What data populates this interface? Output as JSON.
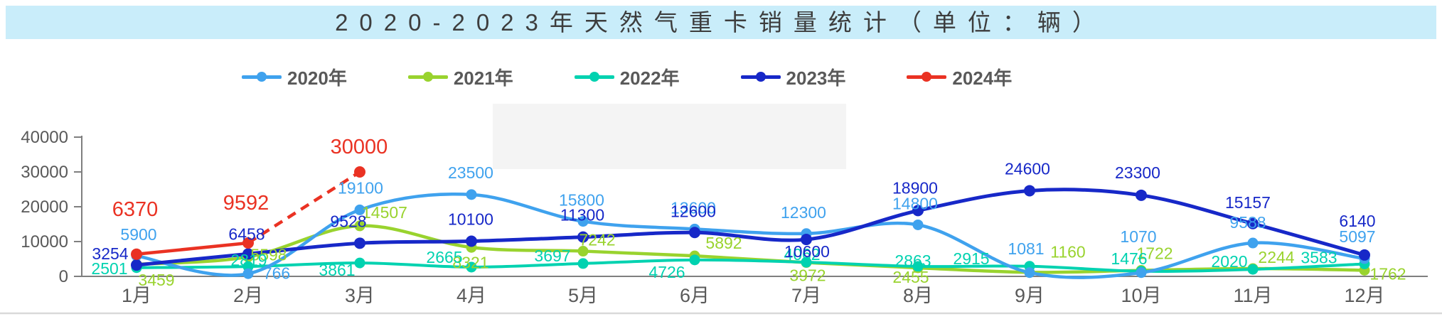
{
  "title": "2020-2023年天然气重卡销量统计（单位：辆）",
  "chart_data": {
    "type": "line",
    "title": "2020-2023年天然气重卡销量统计（单位：辆）",
    "categories": [
      "1月",
      "2月",
      "3月",
      "4月",
      "5月",
      "6月",
      "7月",
      "8月",
      "9月",
      "10月",
      "11月",
      "12月"
    ],
    "series": [
      {
        "name": "2020年",
        "color": "#3fa2ee",
        "values": [
          5900,
          766,
          19100,
          23500,
          15800,
          13600,
          12300,
          14800,
          1081,
          1070,
          9588,
          5097
        ]
      },
      {
        "name": "2021年",
        "color": "#99d32e",
        "values": [
          3459,
          5598,
          14507,
          8321,
          7242,
          5892,
          3972,
          2455,
          1160,
          1722,
          2244,
          1762
        ]
      },
      {
        "name": "2022年",
        "color": "#00d2b0",
        "values": [
          2501,
          2819,
          3861,
          2665,
          3697,
          4726,
          4062,
          2863,
          2915,
          1476,
          2020,
          3583
        ]
      },
      {
        "name": "2023年",
        "color": "#1728c8",
        "values": [
          3254,
          6458,
          9528,
          10100,
          11300,
          12600,
          10600,
          18900,
          24600,
          23300,
          15157,
          6140
        ]
      },
      {
        "name": "2024年",
        "color": "#ea3223",
        "style": "partial-dashed",
        "dashed_from_index": 1,
        "values": [
          6370,
          9592,
          30000
        ]
      }
    ],
    "ylabel": "",
    "xlabel": "",
    "ylim": [
      0,
      40000
    ],
    "yticks": [
      0,
      10000,
      20000,
      30000,
      40000
    ],
    "legend_position": "top",
    "grid": false,
    "axis_color": "#7f7f7f",
    "tick_label_color": "#595959"
  }
}
